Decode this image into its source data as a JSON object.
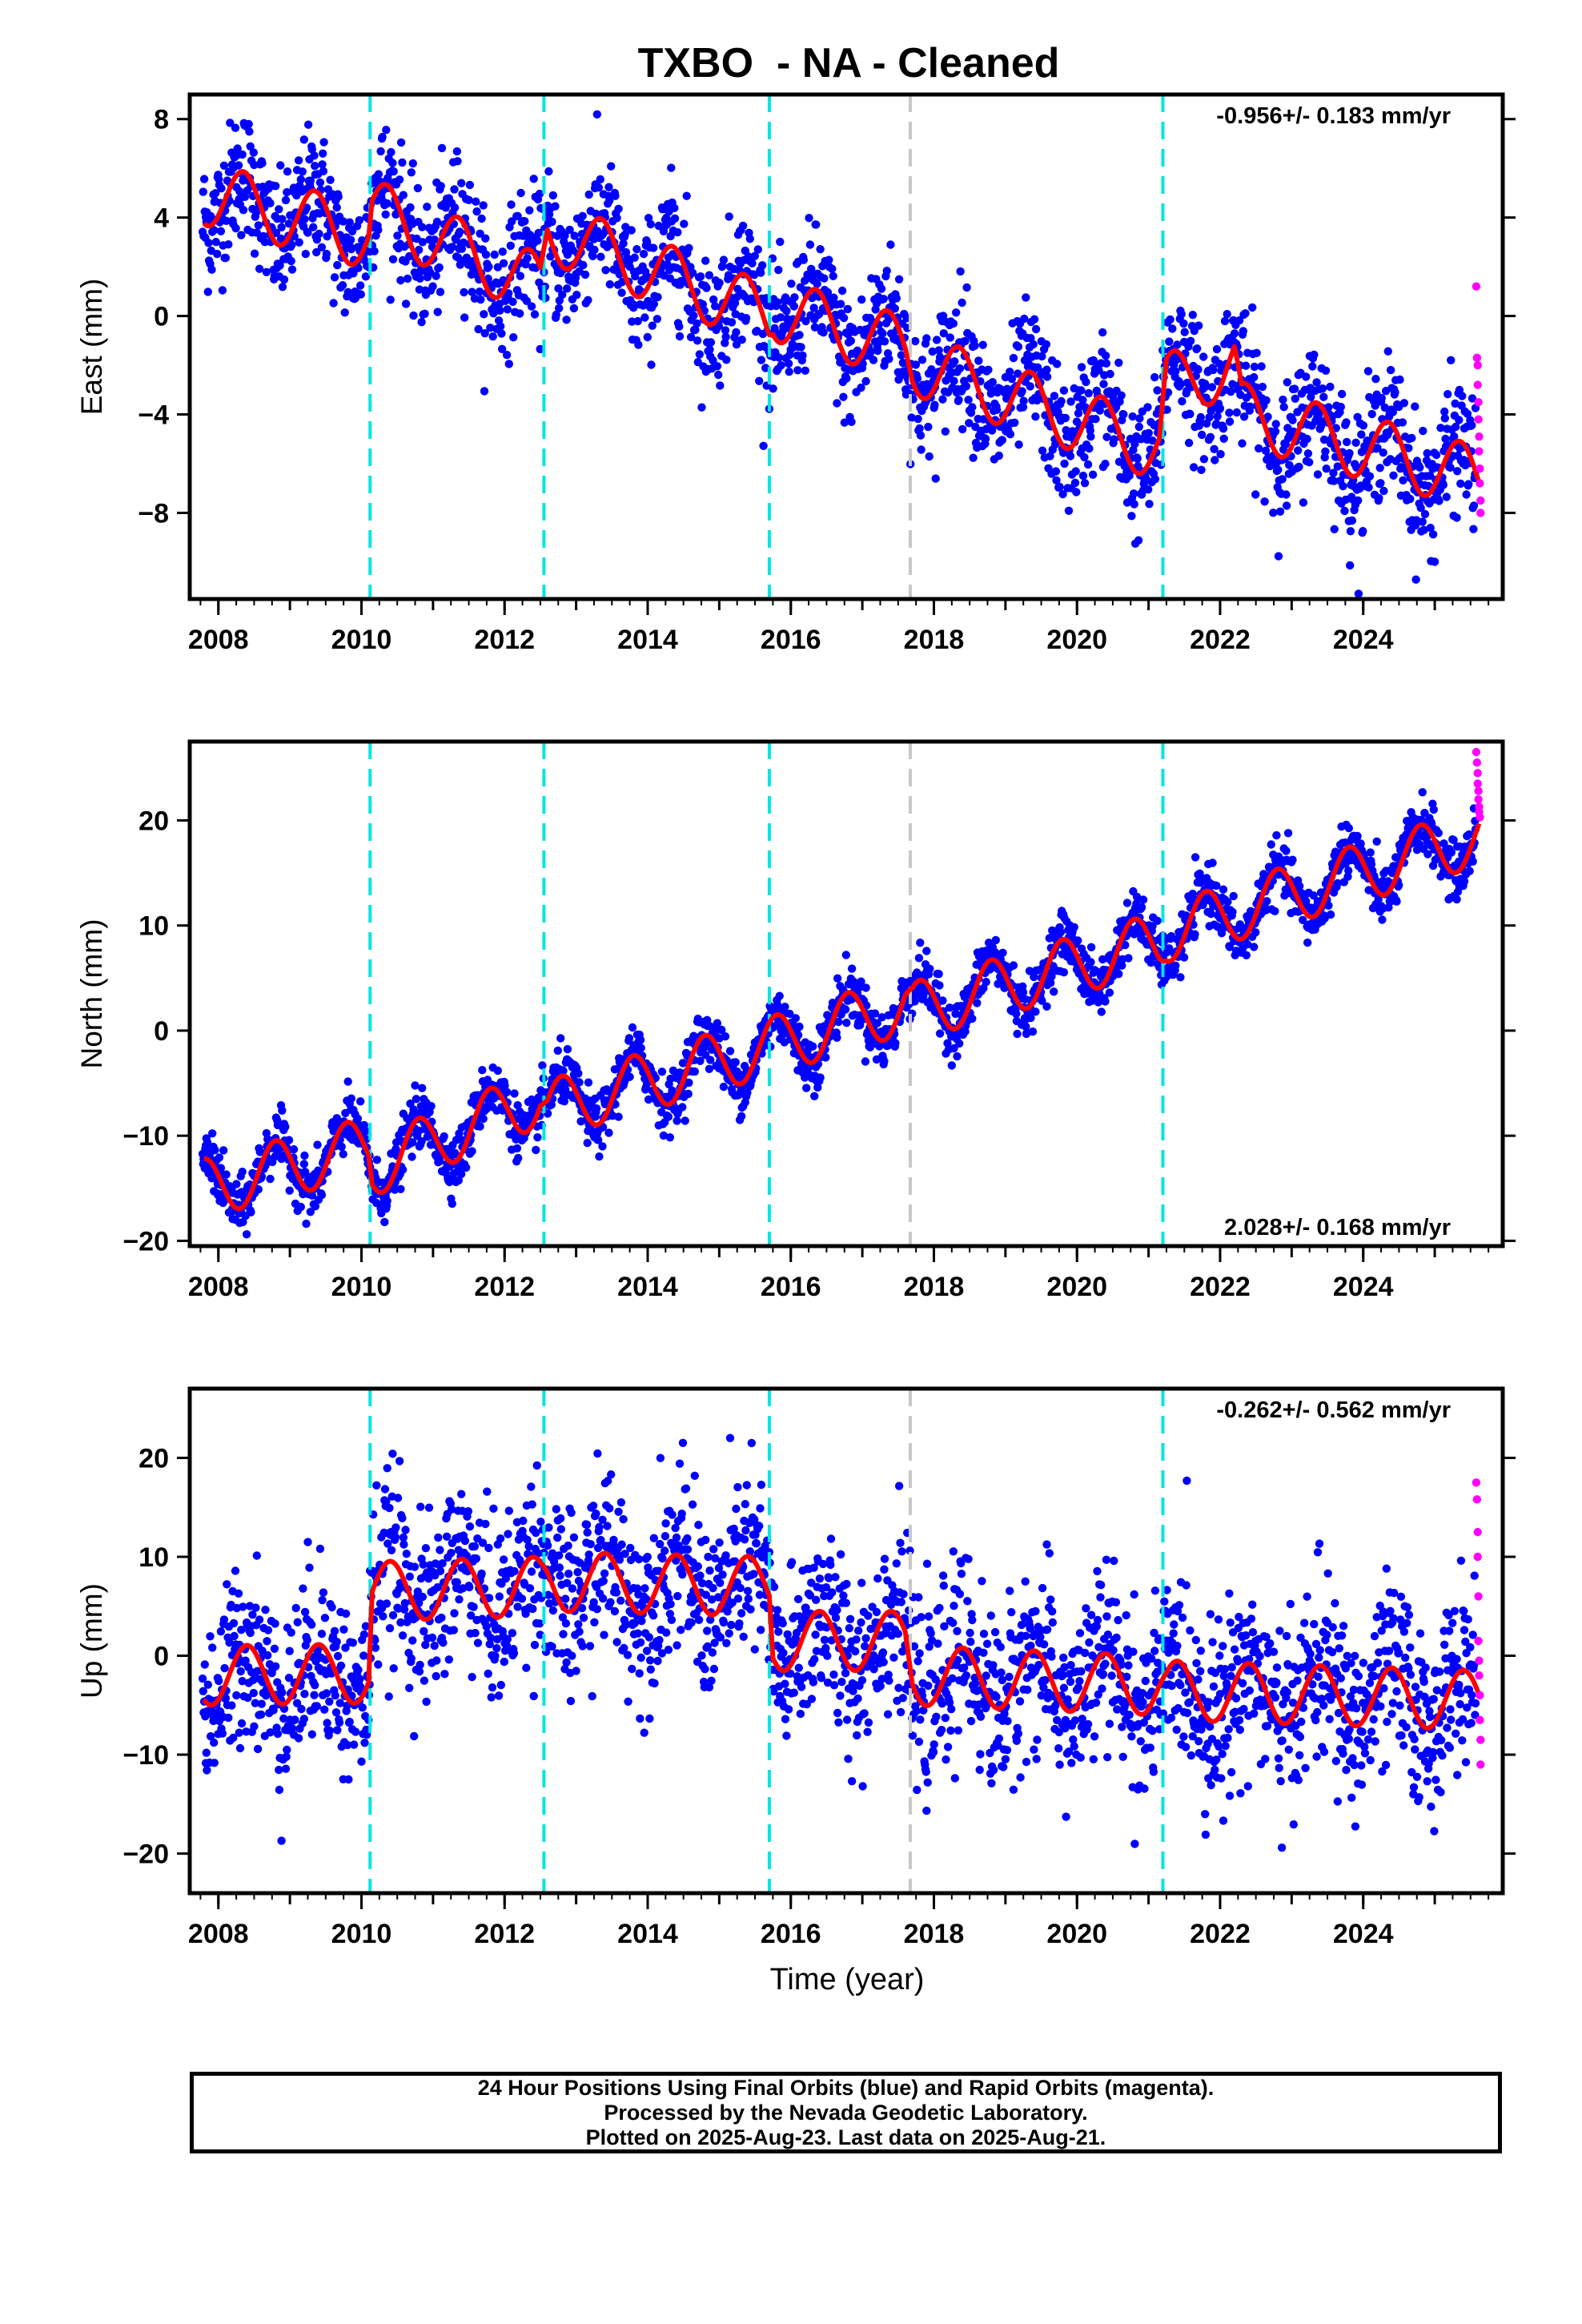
{
  "title": "TXBO  - NA - Cleaned",
  "xlabel": "Time (year)",
  "footer": {
    "line1": "24 Hour Positions Using Final Orbits (blue) and Rapid Orbits (magenta).",
    "line2": "Processed by the Nevada Geodetic Laboratory.",
    "line3": "Plotted on 2025-Aug-23. Last data on 2025-Aug-21."
  },
  "colors": {
    "final": "#0000ff",
    "rapid": "#ff00ff",
    "model": "#ff0000",
    "equipment_change": "#00e5e5",
    "earthquake": "#c8c8c8"
  },
  "chart_data": [
    {
      "type": "scatter",
      "component": "East",
      "ylabel": "East (mm)",
      "rate_label": "-0.956+/- 0.183 mm/yr",
      "rate_position": "top-right",
      "xlim": [
        2007.6,
        2025.95
      ],
      "ylim": [
        -11.5,
        9
      ],
      "yticks": [
        8,
        4,
        0,
        -4,
        -8
      ],
      "xticks": [
        2008,
        2010,
        2012,
        2014,
        2016,
        2018,
        2020,
        2022,
        2024
      ],
      "offset_lines": [
        2010.12,
        2012.55,
        2015.7,
        2021.2
      ],
      "earthquake_lines": [
        2017.67
      ],
      "trend_points": [
        [
          2007.8,
          5.0
        ],
        [
          2010.1,
          3.2
        ],
        [
          2010.15,
          4.3
        ],
        [
          2012.5,
          1.2
        ],
        [
          2012.6,
          3.5
        ],
        [
          2015.7,
          0.0
        ],
        [
          2015.75,
          0.3
        ],
        [
          2017.6,
          -1.3
        ],
        [
          2017.7,
          -1.9
        ],
        [
          2021.15,
          -5.4
        ],
        [
          2021.25,
          -2.8
        ],
        [
          2022.2,
          -2.0
        ],
        [
          2022.3,
          -4.0
        ],
        [
          2025.62,
          -6.6
        ]
      ],
      "annual_amplitude": 1.3,
      "annual_phase_year": 0.1,
      "scatter_sigma": 1.3,
      "rapid_points": [
        [
          2025.58,
          1.2
        ],
        [
          2025.59,
          -1.7
        ],
        [
          2025.6,
          -2.0
        ],
        [
          2025.6,
          -2.8
        ],
        [
          2025.61,
          -3.5
        ],
        [
          2025.61,
          -4.2
        ],
        [
          2025.62,
          -4.9
        ],
        [
          2025.62,
          -5.5
        ],
        [
          2025.63,
          -6.2
        ],
        [
          2025.63,
          -6.8
        ],
        [
          2025.64,
          -7.5
        ],
        [
          2025.64,
          -8.0
        ]
      ]
    },
    {
      "type": "scatter",
      "component": "North",
      "ylabel": "North (mm)",
      "rate_label": "2.028+/- 0.168 mm/yr",
      "rate_position": "bottom-right",
      "xlim": [
        2007.6,
        2025.95
      ],
      "ylim": [
        -20.5,
        27.5
      ],
      "yticks": [
        20,
        10,
        0,
        -10,
        -20
      ],
      "xticks": [
        2008,
        2010,
        2012,
        2014,
        2016,
        2018,
        2020,
        2022,
        2024
      ],
      "offset_lines": [
        2010.12,
        2012.55,
        2015.7,
        2021.2
      ],
      "earthquake_lines": [
        2017.67
      ],
      "trend_points": [
        [
          2007.8,
          -15.0
        ],
        [
          2010.1,
          -11.0
        ],
        [
          2010.15,
          -13.0
        ],
        [
          2012.5,
          -6.3
        ],
        [
          2012.6,
          -7.5
        ],
        [
          2015.7,
          -1.5
        ],
        [
          2017.6,
          2.5
        ],
        [
          2017.7,
          1.8
        ],
        [
          2021.15,
          8.5
        ],
        [
          2021.25,
          9.3
        ],
        [
          2025.62,
          18.5
        ]
      ],
      "annual_amplitude": 2.8,
      "annual_phase_year": 0.55,
      "scatter_sigma": 1.3,
      "rapid_points": [
        [
          2025.58,
          26.5
        ],
        [
          2025.59,
          25.5
        ],
        [
          2025.6,
          24.5
        ],
        [
          2025.6,
          23.5
        ],
        [
          2025.61,
          22.8
        ],
        [
          2025.61,
          22.0
        ],
        [
          2025.62,
          21.3
        ],
        [
          2025.62,
          20.8
        ],
        [
          2025.63,
          20.3
        ]
      ]
    },
    {
      "type": "scatter",
      "component": "Up",
      "ylabel": "Up (mm)",
      "rate_label": "-0.262+/- 0.562 mm/yr",
      "rate_position": "top-right",
      "xlim": [
        2007.6,
        2025.95
      ],
      "ylim": [
        -24,
        27
      ],
      "yticks": [
        20,
        10,
        0,
        -10,
        -20
      ],
      "xticks": [
        2008,
        2010,
        2012,
        2014,
        2016,
        2018,
        2020,
        2022,
        2024
      ],
      "offset_lines": [
        2010.12,
        2012.55,
        2015.7,
        2021.2
      ],
      "earthquake_lines": [
        2017.67
      ],
      "trend_points": [
        [
          2007.8,
          -2.0
        ],
        [
          2010.1,
          -1.8
        ],
        [
          2010.15,
          6.5
        ],
        [
          2012.5,
          7.0
        ],
        [
          2012.6,
          7.5
        ],
        [
          2015.7,
          7.0
        ],
        [
          2015.75,
          1.5
        ],
        [
          2017.6,
          1.5
        ],
        [
          2017.7,
          -2.0
        ],
        [
          2021.15,
          -3.0
        ],
        [
          2021.25,
          -3.5
        ],
        [
          2025.62,
          -4.5
        ]
      ],
      "annual_amplitude": 3.0,
      "annual_phase_year": 0.15,
      "scatter_sigma": 4.5,
      "rapid_points": [
        [
          2025.58,
          17.5
        ],
        [
          2025.59,
          15.8
        ],
        [
          2025.6,
          12.5
        ],
        [
          2025.6,
          10.0
        ],
        [
          2025.61,
          6.0
        ],
        [
          2025.61,
          1.5
        ],
        [
          2025.62,
          -0.5
        ],
        [
          2025.62,
          -2.0
        ],
        [
          2025.63,
          -4.0
        ],
        [
          2025.63,
          -6.5
        ],
        [
          2025.64,
          -8.5
        ],
        [
          2025.64,
          -11.0
        ]
      ]
    }
  ]
}
